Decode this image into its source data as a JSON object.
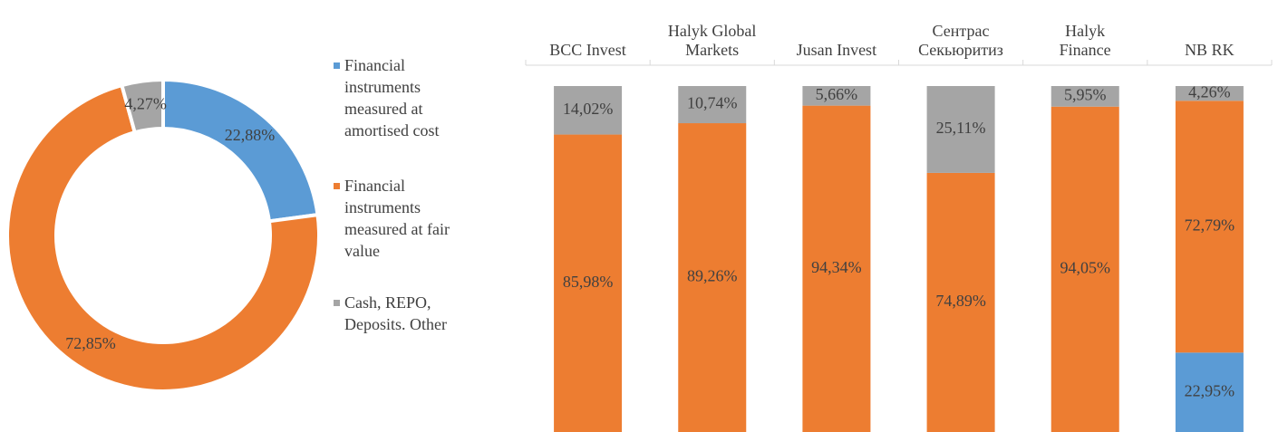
{
  "chart_data": [
    {
      "type": "donut",
      "categories": [
        "Financial instruments measured at amortised cost",
        "Financial instruments measured at fair value",
        "Cash, REPO, Deposits. Other"
      ],
      "values": [
        22.88,
        72.85,
        4.27
      ],
      "value_labels": [
        "22,88%",
        "72,85%",
        "4,27%"
      ],
      "colors": [
        "#5b9bd5",
        "#ed7d31",
        "#a5a5a5"
      ],
      "legend": "right"
    },
    {
      "type": "stacked_bar_100",
      "categories": [
        "BCC Invest",
        "Halyk Global\nMarkets",
        "Jusan Invest",
        "Сентрас\nСекьюритиз",
        "Halyk\nFinance",
        "NB RK"
      ],
      "series": [
        {
          "color": "#5b9bd5",
          "values": [
            0,
            0,
            0,
            0,
            0,
            22.95
          ],
          "value_labels": [
            null,
            null,
            null,
            null,
            null,
            "22,95%"
          ]
        },
        {
          "color": "#ed7d31",
          "values": [
            85.98,
            89.26,
            94.34,
            74.89,
            94.05,
            72.79
          ],
          "value_labels": [
            "85,98%",
            "89,26%",
            "94,34%",
            "74,89%",
            "94,05%",
            "72,79%"
          ]
        },
        {
          "color": "#a5a5a5",
          "values": [
            14.02,
            10.74,
            5.66,
            25.11,
            5.95,
            4.26
          ],
          "value_labels": [
            "14,02%",
            "10,74%",
            "5,66%",
            "25,11%",
            "5,95%",
            "4,26%"
          ]
        }
      ],
      "ylim": [
        0,
        100
      ]
    }
  ]
}
